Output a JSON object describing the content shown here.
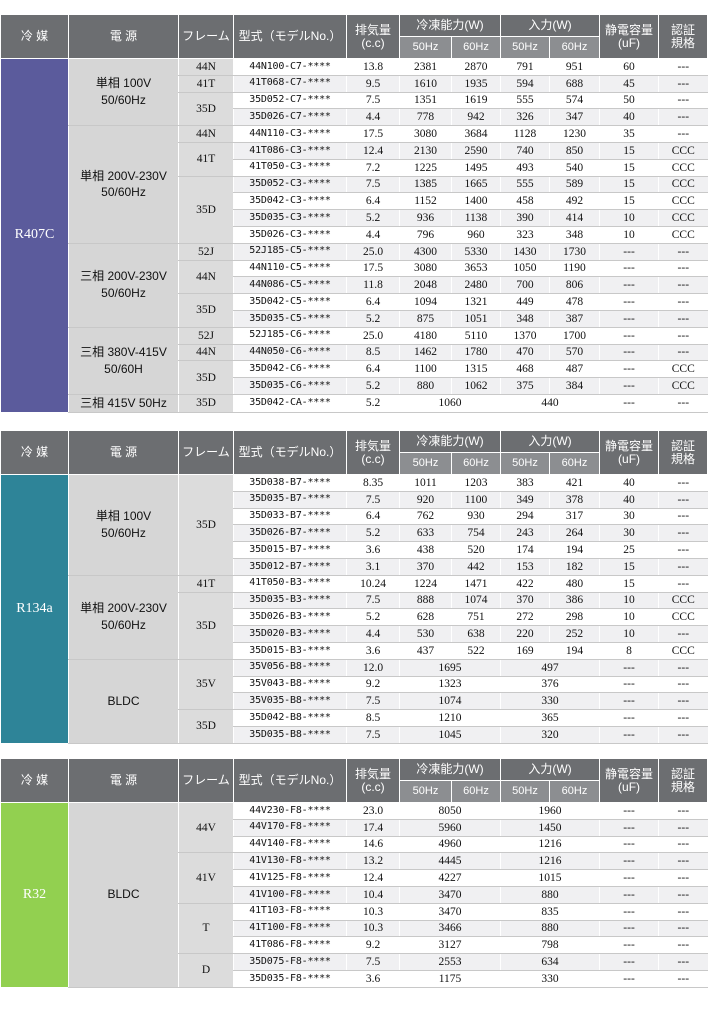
{
  "header": {
    "refrigerant": "冷 媒",
    "power": "電 源",
    "frame": "フレーム",
    "model": "型式（モデルNo.）",
    "displacement": [
      "排気量",
      "(c.c)"
    ],
    "cooling": "冷凍能力(W)",
    "input": "入力(W)",
    "hz": [
      "50Hz",
      "60Hz",
      "50Hz",
      "60Hz"
    ],
    "capacitance": [
      "静電容量",
      "(uF)"
    ],
    "certification": [
      "認証",
      "規格"
    ]
  },
  "tables": [
    {
      "refrigerant": "R407C",
      "color": "#5b5b9c",
      "groups": [
        {
          "power": [
            "単相 100V",
            "50/60Hz"
          ],
          "frames": [
            {
              "frame": "44N",
              "rows": [
                [
                  "44N100-C7-****",
                  "13.8",
                  [
                    "2381",
                    "2870"
                  ],
                  [
                    "791",
                    "951"
                  ],
                  "60",
                  "---"
                ]
              ]
            },
            {
              "frame": "41T",
              "rows": [
                [
                  "41T068-C7-****",
                  "9.5",
                  [
                    "1610",
                    "1935"
                  ],
                  [
                    "594",
                    "688"
                  ],
                  "45",
                  "---"
                ]
              ]
            },
            {
              "frame": "35D",
              "rows": [
                [
                  "35D052-C7-****",
                  "7.5",
                  [
                    "1351",
                    "1619"
                  ],
                  [
                    "555",
                    "574"
                  ],
                  "50",
                  "---"
                ],
                [
                  "35D026-C7-****",
                  "4.4",
                  [
                    "778",
                    "942"
                  ],
                  [
                    "326",
                    "347"
                  ],
                  "40",
                  "---"
                ]
              ]
            }
          ]
        },
        {
          "power": [
            "単相 200V-230V",
            "50/60Hz"
          ],
          "frames": [
            {
              "frame": "44N",
              "rows": [
                [
                  "44N110-C3-****",
                  "17.5",
                  [
                    "3080",
                    "3684"
                  ],
                  [
                    "1128",
                    "1230"
                  ],
                  "35",
                  "---"
                ]
              ]
            },
            {
              "frame": "41T",
              "rows": [
                [
                  "41T086-C3-****",
                  "12.4",
                  [
                    "2130",
                    "2590"
                  ],
                  [
                    "740",
                    "850"
                  ],
                  "15",
                  "CCC"
                ],
                [
                  "41T050-C3-****",
                  "7.2",
                  [
                    "1225",
                    "1495"
                  ],
                  [
                    "493",
                    "540"
                  ],
                  "15",
                  "CCC"
                ]
              ]
            },
            {
              "frame": "35D",
              "rows": [
                [
                  "35D052-C3-****",
                  "7.5",
                  [
                    "1385",
                    "1665"
                  ],
                  [
                    "555",
                    "589"
                  ],
                  "15",
                  "CCC"
                ],
                [
                  "35D042-C3-****",
                  "6.4",
                  [
                    "1152",
                    "1400"
                  ],
                  [
                    "458",
                    "492"
                  ],
                  "15",
                  "CCC"
                ],
                [
                  "35D035-C3-****",
                  "5.2",
                  [
                    "936",
                    "1138"
                  ],
                  [
                    "390",
                    "414"
                  ],
                  "10",
                  "CCC"
                ],
                [
                  "35D026-C3-****",
                  "4.4",
                  [
                    "796",
                    "960"
                  ],
                  [
                    "323",
                    "348"
                  ],
                  "10",
                  "CCC"
                ]
              ]
            }
          ]
        },
        {
          "power": [
            "三相 200V-230V",
            "50/60Hz"
          ],
          "frames": [
            {
              "frame": "52J",
              "rows": [
                [
                  "52J185-C5-****",
                  "25.0",
                  [
                    "4300",
                    "5330"
                  ],
                  [
                    "1430",
                    "1730"
                  ],
                  "---",
                  "---"
                ]
              ]
            },
            {
              "frame": "44N",
              "rows": [
                [
                  "44N110-C5-****",
                  "17.5",
                  [
                    "3080",
                    "3653"
                  ],
                  [
                    "1050",
                    "1190"
                  ],
                  "---",
                  "---"
                ],
                [
                  "44N086-C5-****",
                  "11.8",
                  [
                    "2048",
                    "2480"
                  ],
                  [
                    "700",
                    "806"
                  ],
                  "---",
                  "---"
                ]
              ]
            },
            {
              "frame": "35D",
              "rows": [
                [
                  "35D042-C5-****",
                  "6.4",
                  [
                    "1094",
                    "1321"
                  ],
                  [
                    "449",
                    "478"
                  ],
                  "---",
                  "---"
                ],
                [
                  "35D035-C5-****",
                  "5.2",
                  [
                    "875",
                    "1051"
                  ],
                  [
                    "348",
                    "387"
                  ],
                  "---",
                  "---"
                ]
              ]
            }
          ]
        },
        {
          "power": [
            "三相 380V-415V",
            "50/60H"
          ],
          "frames": [
            {
              "frame": "52J",
              "rows": [
                [
                  "52J185-C6-****",
                  "25.0",
                  [
                    "4180",
                    "5110"
                  ],
                  [
                    "1370",
                    "1700"
                  ],
                  "---",
                  "---"
                ]
              ]
            },
            {
              "frame": "44N",
              "rows": [
                [
                  "44N050-C6-****",
                  "8.5",
                  [
                    "1462",
                    "1780"
                  ],
                  [
                    "470",
                    "570"
                  ],
                  "---",
                  "---"
                ]
              ]
            },
            {
              "frame": "35D",
              "rows": [
                [
                  "35D042-C6-****",
                  "6.4",
                  [
                    "1100",
                    "1315"
                  ],
                  [
                    "468",
                    "487"
                  ],
                  "---",
                  "CCC"
                ],
                [
                  "35D035-C6-****",
                  "5.2",
                  [
                    "880",
                    "1062"
                  ],
                  [
                    "375",
                    "384"
                  ],
                  "---",
                  "CCC"
                ]
              ]
            }
          ]
        },
        {
          "power": [
            "三相 415V 50Hz"
          ],
          "frames": [
            {
              "frame": "35D",
              "rows": [
                [
                  "35D042-CA-****",
                  "5.2",
                  [
                    "1060"
                  ],
                  [
                    "440"
                  ],
                  "---",
                  "---"
                ]
              ]
            }
          ]
        }
      ]
    },
    {
      "refrigerant": "R134a",
      "color": "#2e8498",
      "groups": [
        {
          "power": [
            "単相 100V",
            "50/60Hz"
          ],
          "frames": [
            {
              "frame": "35D",
              "rows": [
                [
                  "35D038-B7-****",
                  "8.35",
                  [
                    "1011",
                    "1203"
                  ],
                  [
                    "383",
                    "421"
                  ],
                  "40",
                  "---"
                ],
                [
                  "35D035-B7-****",
                  "7.5",
                  [
                    "920",
                    "1100"
                  ],
                  [
                    "349",
                    "378"
                  ],
                  "40",
                  "---"
                ],
                [
                  "35D033-B7-****",
                  "6.4",
                  [
                    "762",
                    "930"
                  ],
                  [
                    "294",
                    "317"
                  ],
                  "30",
                  "---"
                ],
                [
                  "35D026-B7-****",
                  "5.2",
                  [
                    "633",
                    "754"
                  ],
                  [
                    "243",
                    "264"
                  ],
                  "30",
                  "---"
                ],
                [
                  "35D015-B7-****",
                  "3.6",
                  [
                    "438",
                    "520"
                  ],
                  [
                    "174",
                    "194"
                  ],
                  "25",
                  "---"
                ],
                [
                  "35D012-B7-****",
                  "3.1",
                  [
                    "370",
                    "442"
                  ],
                  [
                    "153",
                    "182"
                  ],
                  "15",
                  "---"
                ]
              ]
            }
          ]
        },
        {
          "power": [
            "単相 200V-230V",
            "50/60Hz"
          ],
          "frames": [
            {
              "frame": "41T",
              "rows": [
                [
                  "41T050-B3-****",
                  "10.24",
                  [
                    "1224",
                    "1471"
                  ],
                  [
                    "422",
                    "480"
                  ],
                  "15",
                  "---"
                ]
              ]
            },
            {
              "frame": "35D",
              "rows": [
                [
                  "35D035-B3-****",
                  "7.5",
                  [
                    "888",
                    "1074"
                  ],
                  [
                    "370",
                    "386"
                  ],
                  "10",
                  "CCC"
                ],
                [
                  "35D026-B3-****",
                  "5.2",
                  [
                    "628",
                    "751"
                  ],
                  [
                    "272",
                    "298"
                  ],
                  "10",
                  "CCC"
                ],
                [
                  "35D020-B3-****",
                  "4.4",
                  [
                    "530",
                    "638"
                  ],
                  [
                    "220",
                    "252"
                  ],
                  "10",
                  "---"
                ],
                [
                  "35D015-B3-****",
                  "3.6",
                  [
                    "437",
                    "522"
                  ],
                  [
                    "169",
                    "194"
                  ],
                  "8",
                  "CCC"
                ]
              ]
            }
          ]
        },
        {
          "power": [
            "BLDC"
          ],
          "frames": [
            {
              "frame": "35V",
              "rows": [
                [
                  "35V056-B8-****",
                  "12.0",
                  [
                    "1695"
                  ],
                  [
                    "497"
                  ],
                  "---",
                  "---"
                ],
                [
                  "35V043-B8-****",
                  "9.2",
                  [
                    "1323"
                  ],
                  [
                    "376"
                  ],
                  "---",
                  "---"
                ],
                [
                  "35V035-B8-****",
                  "7.5",
                  [
                    "1074"
                  ],
                  [
                    "330"
                  ],
                  "---",
                  "---"
                ]
              ]
            },
            {
              "frame": "35D",
              "rows": [
                [
                  "35D042-B8-****",
                  "8.5",
                  [
                    "1210"
                  ],
                  [
                    "365"
                  ],
                  "---",
                  "---"
                ],
                [
                  "35D035-B8-****",
                  "7.5",
                  [
                    "1045"
                  ],
                  [
                    "320"
                  ],
                  "---",
                  "---"
                ]
              ]
            }
          ]
        }
      ]
    },
    {
      "refrigerant": "R32",
      "color": "#92d050",
      "groups": [
        {
          "power": [
            "BLDC"
          ],
          "frames": [
            {
              "frame": "44V",
              "rows": [
                [
                  "44V230-F8-****",
                  "23.0",
                  [
                    "8050"
                  ],
                  [
                    "1960"
                  ],
                  "---",
                  "---"
                ],
                [
                  "44V170-F8-****",
                  "17.4",
                  [
                    "5960"
                  ],
                  [
                    "1450"
                  ],
                  "---",
                  "---"
                ],
                [
                  "44V140-F8-****",
                  "14.6",
                  [
                    "4960"
                  ],
                  [
                    "1216"
                  ],
                  "---",
                  "---"
                ]
              ]
            },
            {
              "frame": "41V",
              "rows": [
                [
                  "41V130-F8-****",
                  "13.2",
                  [
                    "4445"
                  ],
                  [
                    "1216"
                  ],
                  "---",
                  "---"
                ],
                [
                  "41V125-F8-****",
                  "12.4",
                  [
                    "4227"
                  ],
                  [
                    "1015"
                  ],
                  "---",
                  "---"
                ],
                [
                  "41V100-F8-****",
                  "10.4",
                  [
                    "3470"
                  ],
                  [
                    "880"
                  ],
                  "---",
                  "---"
                ]
              ]
            },
            {
              "frame": "T",
              "rows": [
                [
                  "41T103-F8-****",
                  "10.3",
                  [
                    "3470"
                  ],
                  [
                    "835"
                  ],
                  "---",
                  "---"
                ],
                [
                  "41T100-F8-****",
                  "10.3",
                  [
                    "3466"
                  ],
                  [
                    "880"
                  ],
                  "---",
                  "---"
                ],
                [
                  "41T086-F8-****",
                  "9.2",
                  [
                    "3127"
                  ],
                  [
                    "798"
                  ],
                  "---",
                  "---"
                ]
              ]
            },
            {
              "frame": "D",
              "rows": [
                [
                  "35D075-F8-****",
                  "7.5",
                  [
                    "2553"
                  ],
                  [
                    "634"
                  ],
                  "---",
                  "---"
                ],
                [
                  "35D035-F8-****",
                  "3.6",
                  [
                    "1175"
                  ],
                  [
                    "330"
                  ],
                  "---",
                  "---"
                ]
              ]
            }
          ]
        }
      ]
    }
  ]
}
